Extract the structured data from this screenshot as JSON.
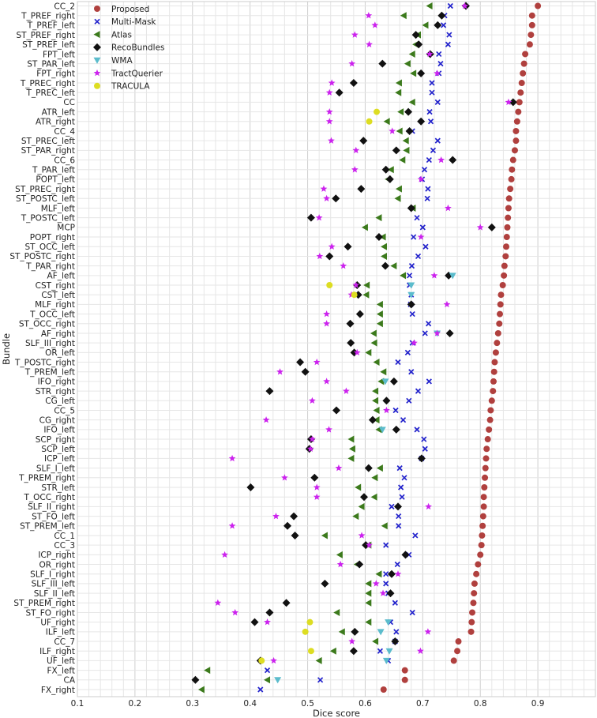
{
  "chart_data": {
    "type": "scatter",
    "xlabel": "Dice score",
    "ylabel": "Bundle",
    "xlim": [
      0.1,
      1.0
    ],
    "xticks": [
      0.1,
      0.2,
      0.3,
      0.4,
      0.5,
      0.6,
      0.7,
      0.8,
      0.9
    ],
    "grid": true,
    "legend_position": "top-left",
    "categories": [
      "CC_2",
      "T_PREF_right",
      "T_PREF_left",
      "ST_PREF_right",
      "ST_PREF_left",
      "FPT_left",
      "ST_PAR_left",
      "FPT_right",
      "T_PREC_right",
      "T_PREC_left",
      "CC",
      "ATR_left",
      "ATR_right",
      "CC_4",
      "ST_PREC_left",
      "ST_PAR_right",
      "CC_6",
      "T_PAR_left",
      "POPT_left",
      "ST_PREC_right",
      "ST_POSTC_left",
      "MLF_left",
      "T_POSTC_left",
      "MCP",
      "POPT_right",
      "ST_OCC_left",
      "ST_POSTC_right",
      "T_PAR_right",
      "AF_left",
      "CST_right",
      "CST_left",
      "MLF_right",
      "T_OCC_left",
      "ST_OCC_right",
      "AF_right",
      "SLF_III_right",
      "OR_left",
      "T_POSTC_right",
      "T_PREM_left",
      "IFO_right",
      "STR_right",
      "CG_left",
      "CC_5",
      "CG_right",
      "IFO_left",
      "SCP_right",
      "SCP_left",
      "ICP_left",
      "SLF_I_left",
      "T_PREM_right",
      "STR_left",
      "T_OCC_right",
      "SLF_II_right",
      "ST_FO_left",
      "ST_PREM_left",
      "CC_1",
      "CC_3",
      "ICP_right",
      "OR_right",
      "SLF_I_right",
      "SLF_III_left",
      "SLF_II_left",
      "ST_PREM_right",
      "ST_FO_right",
      "UF_right",
      "ILF_left",
      "CC_7",
      "ILF_right",
      "UF_left",
      "FX_left",
      "CA",
      "FX_right"
    ],
    "series": [
      {
        "name": "Proposed",
        "marker": "circle",
        "color": "#b0403e",
        "values": [
          0.9,
          0.89,
          0.89,
          0.888,
          0.886,
          0.878,
          0.876,
          0.874,
          0.872,
          0.87,
          0.868,
          0.866,
          0.864,
          0.862,
          0.862,
          0.86,
          0.857,
          0.855,
          0.854,
          0.852,
          0.85,
          0.849,
          0.848,
          0.847,
          0.846,
          0.845,
          0.844,
          0.842,
          0.841,
          0.839,
          0.836,
          0.835,
          0.834,
          0.833,
          0.831,
          0.829,
          0.827,
          0.825,
          0.824,
          0.823,
          0.822,
          0.82,
          0.818,
          0.817,
          0.815,
          0.813,
          0.811,
          0.81,
          0.809,
          0.808,
          0.807,
          0.806,
          0.806,
          0.805,
          0.804,
          0.803,
          0.802,
          0.8,
          0.796,
          0.793,
          0.79,
          0.789,
          0.788,
          0.786,
          0.785,
          0.784,
          0.762,
          0.76,
          0.754,
          0.669,
          0.669,
          0.632
        ]
      },
      {
        "name": "Multi-Mask",
        "marker": "x",
        "color": "#2222cc",
        "values": [
          0.748,
          0.738,
          0.736,
          0.746,
          0.744,
          0.728,
          0.731,
          0.728,
          0.716,
          0.716,
          0.726,
          0.712,
          0.714,
          0.682,
          0.726,
          0.718,
          0.711,
          0.703,
          0.699,
          0.709,
          0.708,
          0.682,
          0.69,
          0.7,
          0.684,
          0.705,
          0.692,
          0.681,
          0.677,
          0.677,
          0.68,
          0.679,
          0.682,
          0.71,
          0.704,
          0.682,
          0.674,
          0.657,
          0.68,
          0.711,
          0.692,
          0.676,
          0.653,
          0.666,
          0.69,
          0.702,
          0.704,
          0.698,
          0.66,
          0.668,
          0.662,
          0.664,
          0.646,
          0.658,
          0.658,
          0.687,
          0.636,
          0.676,
          0.656,
          0.636,
          0.636,
          0.64,
          0.652,
          0.682,
          0.644,
          0.654,
          0.652,
          0.626,
          0.64,
          0.43,
          0.522,
          0.418
        ]
      },
      {
        "name": "Atlas",
        "marker": "triangle-left",
        "color": "#3c7a1c",
        "values": [
          0.712,
          0.667,
          0.705,
          0.692,
          0.688,
          0.682,
          0.674,
          0.684,
          0.659,
          0.658,
          0.682,
          0.662,
          0.638,
          0.66,
          0.671,
          0.672,
          0.665,
          0.645,
          0.64,
          0.659,
          0.657,
          0.683,
          0.624,
          0.6,
          0.631,
          0.633,
          0.633,
          0.65,
          0.666,
          0.603,
          0.602,
          0.626,
          0.626,
          0.626,
          0.615,
          0.616,
          0.606,
          0.62,
          0.632,
          0.628,
          0.618,
          0.618,
          0.62,
          0.62,
          0.624,
          0.576,
          0.578,
          0.576,
          0.626,
          0.617,
          0.588,
          0.616,
          0.594,
          0.584,
          0.634,
          0.53,
          0.606,
          0.556,
          0.586,
          0.624,
          0.606,
          0.606,
          0.606,
          0.551,
          0.606,
          0.56,
          0.618,
          0.545,
          0.52,
          0.326,
          0.43,
          0.316
        ]
      },
      {
        "name": "RecoBundles",
        "marker": "diamond",
        "color": "#111111",
        "values": [
          0.775,
          0.733,
          0.726,
          0.688,
          0.693,
          0.713,
          0.63,
          0.697,
          0.58,
          0.555,
          0.857,
          0.675,
          0.697,
          0.677,
          0.597,
          0.654,
          0.752,
          0.636,
          0.643,
          0.593,
          0.549,
          0.68,
          0.506,
          0.82,
          0.624,
          0.57,
          0.538,
          0.635,
          0.745,
          0.586,
          0.588,
          0.68,
          0.591,
          0.574,
          0.747,
          0.575,
          0.581,
          0.487,
          0.496,
          0.65,
          0.434,
          0.637,
          0.55,
          0.613,
          0.654,
          0.506,
          0.503,
          0.698,
          0.606,
          0.512,
          0.401,
          0.598,
          0.657,
          0.476,
          0.465,
          0.478,
          0.601,
          0.67,
          0.59,
          0.646,
          0.53,
          0.644,
          0.463,
          0.434,
          0.408,
          0.582,
          0.652,
          0.58,
          0.418,
          null,
          0.305,
          null
        ]
      },
      {
        "name": "WMA",
        "marker": "triangle-down",
        "color": "#5bbccc",
        "values": [
          null,
          null,
          null,
          null,
          null,
          null,
          null,
          null,
          null,
          null,
          null,
          null,
          null,
          null,
          null,
          null,
          null,
          null,
          null,
          null,
          null,
          null,
          null,
          null,
          null,
          null,
          null,
          null,
          0.752,
          0.68,
          0.68,
          null,
          null,
          null,
          0.725,
          null,
          null,
          null,
          null,
          0.635,
          null,
          null,
          null,
          null,
          0.63,
          null,
          null,
          null,
          null,
          null,
          null,
          null,
          null,
          null,
          null,
          null,
          null,
          null,
          null,
          null,
          null,
          null,
          null,
          null,
          0.64,
          0.627,
          null,
          0.642,
          0.637,
          null,
          0.448,
          null
        ]
      },
      {
        "name": "TractQuerier",
        "marker": "star",
        "color": "#cc22ee",
        "values": [
          0.773,
          0.606,
          0.617,
          0.582,
          0.607,
          0.712,
          0.577,
          0.725,
          0.542,
          0.538,
          0.849,
          0.538,
          0.538,
          0.647,
          0.541,
          0.584,
          0.732,
          0.582,
          0.697,
          0.528,
          0.533,
          0.744,
          0.52,
          0.8,
          0.697,
          0.542,
          0.521,
          0.562,
          0.72,
          0.584,
          0.576,
          0.742,
          0.533,
          0.533,
          0.725,
          0.685,
          0.586,
          0.516,
          0.452,
          0.533,
          0.567,
          0.508,
          0.637,
          0.428,
          0.537,
          0.508,
          0.505,
          0.369,
          0.554,
          0.46,
          0.516,
          0.516,
          0.71,
          0.445,
          0.369,
          0.594,
          0.607,
          0.356,
          0.557,
          0.657,
          0.619,
          0.631,
          0.344,
          0.374,
          0.43,
          0.709,
          0.577,
          0.696,
          0.441,
          null,
          null,
          null
        ]
      },
      {
        "name": "TRACULA",
        "marker": "circle",
        "color": "#dddd22",
        "values": [
          null,
          null,
          null,
          null,
          null,
          null,
          null,
          null,
          null,
          null,
          null,
          0.62,
          0.607,
          null,
          null,
          null,
          null,
          null,
          null,
          null,
          null,
          null,
          null,
          null,
          null,
          null,
          null,
          null,
          null,
          0.538,
          0.581,
          null,
          null,
          null,
          null,
          null,
          null,
          null,
          null,
          null,
          null,
          null,
          null,
          null,
          null,
          null,
          null,
          null,
          null,
          null,
          null,
          null,
          null,
          null,
          null,
          null,
          null,
          null,
          null,
          null,
          null,
          null,
          null,
          null,
          0.504,
          0.496,
          null,
          0.506,
          0.42,
          null,
          null,
          null
        ]
      }
    ]
  }
}
